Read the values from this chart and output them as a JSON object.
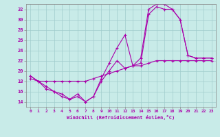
{
  "xlabel": "Windchill (Refroidissement éolien,°C)",
  "background_color": "#c8ebe8",
  "line_color": "#aa00aa",
  "grid_color": "#a0cccc",
  "xlim": [
    -0.5,
    23.5
  ],
  "ylim": [
    13,
    33
  ],
  "xticks": [
    0,
    1,
    2,
    3,
    4,
    5,
    6,
    7,
    8,
    9,
    10,
    11,
    12,
    13,
    14,
    15,
    16,
    17,
    18,
    19,
    20,
    21,
    22,
    23
  ],
  "yticks": [
    14,
    16,
    18,
    20,
    22,
    24,
    26,
    28,
    30,
    32
  ],
  "series1_x": [
    0,
    1,
    2,
    3,
    4,
    5,
    6,
    7,
    8,
    9,
    10,
    11,
    12,
    13,
    14,
    15,
    16,
    17,
    18,
    19,
    20,
    21,
    22,
    23
  ],
  "series1_y": [
    19,
    18,
    17,
    16,
    15,
    14.5,
    15,
    14,
    15,
    18.5,
    21.5,
    24.5,
    27,
    21,
    22.5,
    32,
    33,
    33,
    32,
    30,
    23,
    22.5,
    22.5,
    22.5
  ],
  "series2_x": [
    0,
    1,
    2,
    3,
    4,
    5,
    6,
    7,
    8,
    9,
    10,
    11,
    12,
    13,
    14,
    15,
    16,
    17,
    18,
    19,
    20,
    21,
    22,
    23
  ],
  "series2_y": [
    19,
    18,
    16.5,
    16,
    15.5,
    14.5,
    15.5,
    14,
    15,
    18,
    20,
    22,
    20.5,
    21,
    21.5,
    31,
    32.5,
    32,
    32,
    30,
    23,
    22.5,
    22.5,
    22.5
  ],
  "series3_x": [
    0,
    1,
    2,
    3,
    4,
    5,
    6,
    7,
    8,
    9,
    10,
    11,
    12,
    13,
    14,
    15,
    16,
    17,
    18,
    19,
    20,
    21,
    22,
    23
  ],
  "series3_y": [
    18.5,
    18,
    18,
    18,
    18,
    18,
    18,
    18,
    18.5,
    19,
    19.5,
    20,
    20.5,
    21,
    21,
    21.5,
    22,
    22,
    22,
    22,
    22,
    22,
    22,
    22
  ]
}
